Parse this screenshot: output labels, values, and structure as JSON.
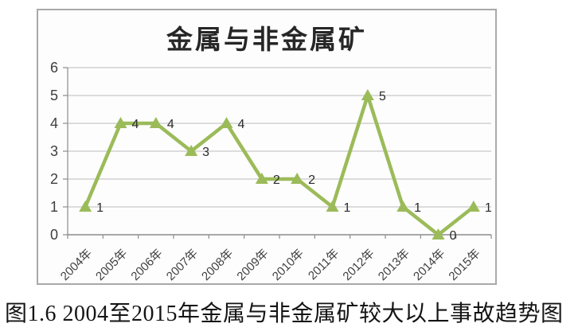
{
  "figure": {
    "caption": "图1.6 2004至2015年金属与非金属矿较大以上事故趋势图"
  },
  "chart_data": {
    "type": "line",
    "title": "金属与非金属矿",
    "categories": [
      "2004年",
      "2005年",
      "2006年",
      "2007年",
      "2008年",
      "2009年",
      "2010年",
      "2011年",
      "2012年",
      "2013年",
      "2014年",
      "2015年"
    ],
    "series": [
      {
        "name": "金属与非金属矿",
        "values": [
          1,
          4,
          4,
          3,
          4,
          2,
          2,
          1,
          5,
          1,
          0,
          1
        ],
        "color": "#9BBB59",
        "marker": "triangle-up"
      }
    ],
    "data_labels": [
      1,
      4,
      4,
      3,
      4,
      2,
      2,
      1,
      5,
      1,
      0,
      1
    ],
    "xlabel": "",
    "ylabel": "",
    "ylim": [
      0,
      6
    ],
    "yticks": [
      0,
      1,
      2,
      3,
      4,
      5,
      6
    ],
    "grid": true,
    "legend": "none",
    "x_tick_rotation": 45
  },
  "colors": {
    "series_line": "#9BBB59",
    "gridline": "#c9c9c9",
    "axis_line": "#8c8c8c",
    "tick_label": "#3f3f3f",
    "data_label": "#2b2b2b",
    "chart_border": "#a9a9a9",
    "title_text": "#262626",
    "caption_text": "#141414",
    "background": "#ffffff"
  }
}
